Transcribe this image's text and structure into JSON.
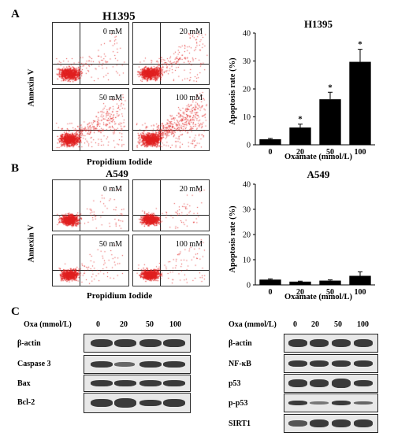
{
  "panels": {
    "A": {
      "letter": "A",
      "flow_title": "H1395",
      "flow_ylabel": "Annexin V",
      "flow_xlabel": "Propidium Iodide",
      "doses": [
        "0 mM",
        "20 mM",
        "50 mM",
        "100 mM"
      ]
    },
    "B": {
      "letter": "B",
      "flow_title": "A549",
      "flow_ylabel": "Annexin V",
      "flow_xlabel": "Propidium Iodide",
      "doses": [
        "0 mM",
        "20 mM",
        "50 mM",
        "100 mM"
      ]
    },
    "C": {
      "letter": "C",
      "left_header": "Oxa (mmol/L)",
      "right_header": "Oxa (mmol/L)",
      "lane_labels": [
        "0",
        "20",
        "50",
        "100"
      ],
      "left_proteins": [
        "β-actin",
        "Caspase 3",
        "Bax",
        "Bcl-2"
      ],
      "right_proteins": [
        "β-actin",
        "NF-κB",
        "p53",
        "p-p53",
        "SIRT1"
      ]
    }
  },
  "chart_data": [
    {
      "type": "bar",
      "title": "H1395",
      "xlabel": "Oxamate (mmol/L)",
      "ylabel": "Apoptosis rate (%)",
      "categories": [
        "0",
        "20",
        "50",
        "100"
      ],
      "values": [
        2,
        6.2,
        16.3,
        29.7
      ],
      "errors": [
        0.3,
        1.2,
        2.5,
        4.5
      ],
      "significance": [
        "",
        "*",
        "*",
        "*"
      ],
      "ylim": [
        0,
        40
      ],
      "yticks": [
        "0",
        "10",
        "20",
        "30",
        "40"
      ],
      "bar_color": "#000000"
    },
    {
      "type": "bar",
      "title": "A549",
      "xlabel": "Oxamate (mmol/L)",
      "ylabel": "Apoptosis rate (%)",
      "categories": [
        "0",
        "20",
        "50",
        "100"
      ],
      "values": [
        2.1,
        1.3,
        1.7,
        3.6
      ],
      "errors": [
        0.3,
        0.2,
        0.3,
        1.6
      ],
      "significance": [
        "",
        "",
        "",
        ""
      ],
      "ylim": [
        0,
        40
      ],
      "yticks": [
        "0",
        "10",
        "20",
        "30",
        "40"
      ],
      "bar_color": "#000000"
    }
  ]
}
